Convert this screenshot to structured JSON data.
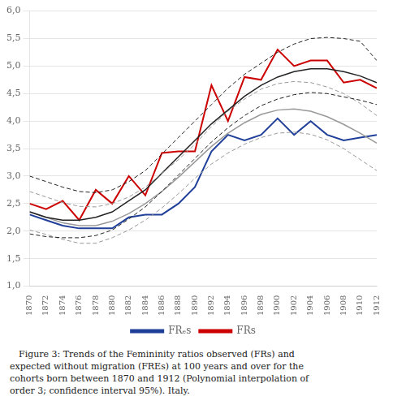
{
  "chart_data": {
    "type": "line",
    "x": [
      1870,
      1872,
      1874,
      1876,
      1878,
      1880,
      1882,
      1884,
      1886,
      1888,
      1890,
      1892,
      1894,
      1896,
      1898,
      1900,
      1902,
      1904,
      1906,
      1908,
      1910,
      1912
    ],
    "series": [
      {
        "color": "#222222",
        "line_style": "dashed",
        "values": [
          3.0,
          2.9,
          2.8,
          2.72,
          2.7,
          2.75,
          2.9,
          3.1,
          3.4,
          3.7,
          4.0,
          4.3,
          4.6,
          4.85,
          5.05,
          5.25,
          5.4,
          5.5,
          5.52,
          5.5,
          5.45,
          5.1
        ]
      },
      {
        "color": "#222222",
        "line_style": "dashed",
        "values": [
          1.95,
          1.9,
          1.88,
          1.88,
          1.92,
          2.02,
          2.22,
          2.44,
          2.72,
          3.02,
          3.32,
          3.62,
          3.88,
          4.1,
          4.28,
          4.4,
          4.48,
          4.52,
          4.5,
          4.44,
          4.38,
          4.3
        ]
      },
      {
        "color": "#999999",
        "line_style": "dashed",
        "values": [
          2.72,
          2.62,
          2.52,
          2.45,
          2.44,
          2.5,
          2.62,
          2.8,
          3.05,
          3.3,
          3.58,
          3.9,
          4.18,
          4.4,
          4.58,
          4.68,
          4.72,
          4.7,
          4.62,
          4.5,
          4.32,
          4.1
        ]
      },
      {
        "color": "#999999",
        "line_style": "dashed",
        "values": [
          2.02,
          1.94,
          1.85,
          1.78,
          1.78,
          1.88,
          2.02,
          2.2,
          2.42,
          2.68,
          2.96,
          3.22,
          3.42,
          3.58,
          3.7,
          3.78,
          3.8,
          3.76,
          3.66,
          3.5,
          3.3,
          3.1
        ]
      },
      {
        "color": "#222222",
        "line_style": "solid",
        "values": [
          2.35,
          2.25,
          2.2,
          2.2,
          2.25,
          2.35,
          2.55,
          2.75,
          3.05,
          3.35,
          3.65,
          3.95,
          4.2,
          4.45,
          4.65,
          4.8,
          4.9,
          4.95,
          4.95,
          4.9,
          4.82,
          4.7
        ]
      },
      {
        "color": "#999999",
        "line_style": "solid",
        "values": [
          2.35,
          2.25,
          2.15,
          2.1,
          2.1,
          2.18,
          2.32,
          2.5,
          2.72,
          2.98,
          3.26,
          3.54,
          3.78,
          3.97,
          4.12,
          4.2,
          4.22,
          4.18,
          4.08,
          3.94,
          3.78,
          3.6
        ]
      },
      {
        "name": "FRₑs",
        "color": "#1f3f99",
        "line_style": "solid",
        "values": [
          2.3,
          2.2,
          2.1,
          2.05,
          2.05,
          2.05,
          2.25,
          2.3,
          2.3,
          2.5,
          2.8,
          3.45,
          3.75,
          3.65,
          3.75,
          4.05,
          3.75,
          4.0,
          3.75,
          3.65,
          3.7,
          3.75
        ]
      },
      {
        "name": "FRs",
        "color": "#cc0000",
        "line_style": "solid",
        "values": [
          2.5,
          2.4,
          2.55,
          2.2,
          2.75,
          2.5,
          3.0,
          2.65,
          3.42,
          3.45,
          3.45,
          4.65,
          4.0,
          4.8,
          4.75,
          5.3,
          5.0,
          5.1,
          5.1,
          4.7,
          4.75,
          4.6
        ]
      }
    ],
    "xlim": [
      1870,
      1912
    ],
    "xticks": [
      1870,
      1872,
      1874,
      1876,
      1878,
      1880,
      1882,
      1884,
      1886,
      1888,
      1890,
      1892,
      1894,
      1896,
      1898,
      1900,
      1902,
      1904,
      1906,
      1908,
      1910,
      1912
    ],
    "ylim": [
      1.0,
      6.0
    ],
    "yticks": [
      {
        "value": 1.0,
        "label": "1,0"
      },
      {
        "value": 1.5,
        "label": "1,5"
      },
      {
        "value": 2.0,
        "label": "2,0"
      },
      {
        "value": 2.5,
        "label": "2,5"
      },
      {
        "value": 3.0,
        "label": "3,0"
      },
      {
        "value": 3.5,
        "label": "3,5"
      },
      {
        "value": 4.0,
        "label": "4,0"
      },
      {
        "value": 4.5,
        "label": "4,5"
      },
      {
        "value": 5.0,
        "label": "5,0"
      },
      {
        "value": 5.5,
        "label": "5,5"
      },
      {
        "value": 6.0,
        "label": "6,0"
      }
    ],
    "grid": "y",
    "legend": "bottom",
    "annotations": [
      " Figure 3: Trends of the Femininity ratios observed (FRs) and\nexpected without migration (FREs) at 100 years and over for the\ncohorts born between 1870 and 1912 (Polynomial interpolation of\norder 3; confidence interval 95%). Italy."
    ]
  }
}
